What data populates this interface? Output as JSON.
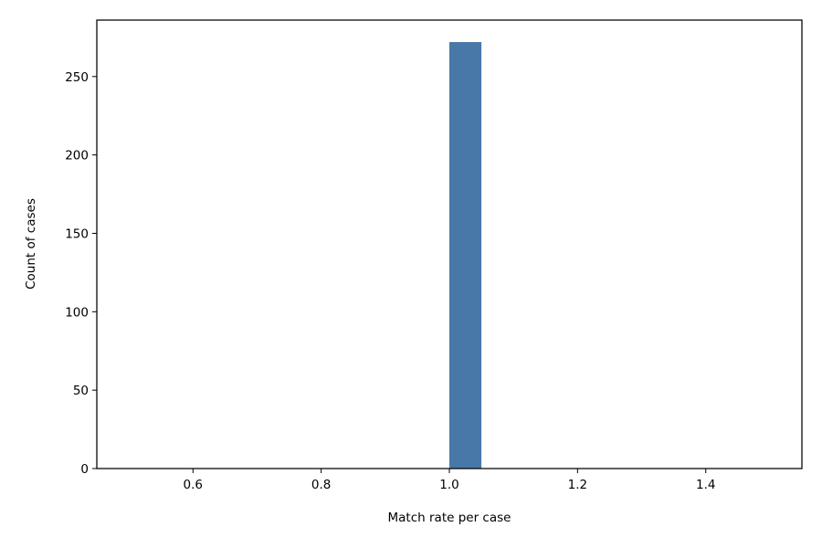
{
  "chart_data": {
    "type": "bar",
    "title": "",
    "xlabel": "Match rate per case",
    "ylabel": "Count of cases",
    "xlim": [
      0.45,
      1.55
    ],
    "ylim": [
      0,
      286
    ],
    "x_ticks": [
      0.6,
      0.8,
      1.0,
      1.2,
      1.4
    ],
    "x_tick_labels": [
      "0.6",
      "0.8",
      "1.0",
      "1.2",
      "1.4"
    ],
    "y_ticks": [
      0,
      50,
      100,
      150,
      200,
      250
    ],
    "y_tick_labels": [
      "0",
      "50",
      "100",
      "150",
      "200",
      "250"
    ],
    "bins": [
      {
        "x_start": 1.0,
        "x_end": 1.05,
        "count": 272
      }
    ],
    "bar_color": "#4878a8",
    "grid": false,
    "legend": "none"
  }
}
